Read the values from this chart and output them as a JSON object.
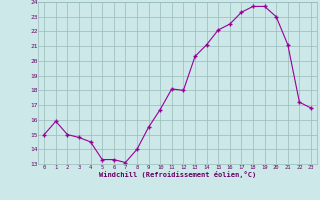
{
  "x": [
    0,
    1,
    2,
    3,
    4,
    5,
    6,
    7,
    8,
    9,
    10,
    11,
    12,
    13,
    14,
    15,
    16,
    17,
    18,
    19,
    20,
    21,
    22,
    23
  ],
  "y": [
    15.0,
    15.9,
    15.0,
    14.8,
    14.5,
    13.3,
    13.3,
    13.1,
    14.0,
    15.5,
    16.7,
    18.1,
    18.0,
    20.3,
    21.1,
    22.1,
    22.5,
    23.3,
    23.7,
    23.7,
    23.0,
    21.1,
    17.2,
    16.8
  ],
  "line_color": "#990099",
  "marker_color": "#990099",
  "bg_color": "#cce8e8",
  "grid_color": "#99bbbb",
  "tick_label_color": "#660066",
  "xlabel": "Windchill (Refroidissement éolien,°C)",
  "xlim": [
    -0.5,
    23.5
  ],
  "ylim": [
    13,
    24
  ],
  "yticks": [
    13,
    14,
    15,
    16,
    17,
    18,
    19,
    20,
    21,
    22,
    23,
    24
  ],
  "xticks": [
    0,
    1,
    2,
    3,
    4,
    5,
    6,
    7,
    8,
    9,
    10,
    11,
    12,
    13,
    14,
    15,
    16,
    17,
    18,
    19,
    20,
    21,
    22,
    23
  ]
}
